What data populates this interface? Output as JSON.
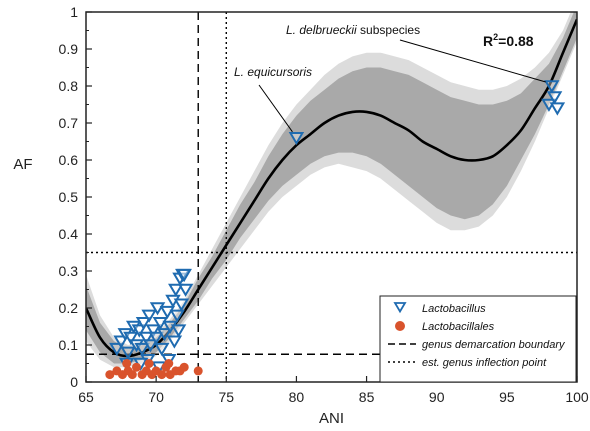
{
  "chart_data": {
    "type": "scatter",
    "xlabel": "ANI",
    "ylabel": "AF",
    "xlim": [
      65,
      100
    ],
    "ylim": [
      0,
      1
    ],
    "x_ticks": [
      65,
      70,
      75,
      80,
      85,
      90,
      95,
      100
    ],
    "y_ticks": [
      0,
      0.1,
      0.2,
      0.3,
      0.4,
      0.5,
      0.6,
      0.7,
      0.8,
      0.9,
      1
    ],
    "y_tick_labels": [
      "0",
      "0.1",
      "0.2",
      "0.3",
      "0.4",
      "0.5",
      "0.6",
      "0.7",
      "0.8",
      "0.9",
      "1"
    ],
    "grid": false,
    "fit": {
      "x": [
        65,
        66,
        67,
        68,
        69,
        70,
        71,
        72,
        73,
        74,
        75,
        76,
        77,
        78,
        79,
        80,
        81,
        82,
        83,
        84,
        85,
        86,
        87,
        88,
        89,
        90,
        91,
        92,
        93,
        94,
        95,
        96,
        97,
        98,
        99,
        100
      ],
      "y": [
        0.2,
        0.12,
        0.08,
        0.07,
        0.08,
        0.1,
        0.14,
        0.19,
        0.25,
        0.31,
        0.37,
        0.43,
        0.49,
        0.55,
        0.6,
        0.64,
        0.67,
        0.7,
        0.72,
        0.73,
        0.73,
        0.72,
        0.7,
        0.68,
        0.65,
        0.63,
        0.61,
        0.6,
        0.6,
        0.61,
        0.64,
        0.68,
        0.74,
        0.8,
        0.89,
        0.98
      ],
      "band_inner_low": [
        0.14,
        0.08,
        0.05,
        0.05,
        0.06,
        0.08,
        0.12,
        0.17,
        0.22,
        0.28,
        0.33,
        0.39,
        0.44,
        0.49,
        0.53,
        0.56,
        0.59,
        0.61,
        0.62,
        0.62,
        0.61,
        0.59,
        0.56,
        0.53,
        0.5,
        0.47,
        0.45,
        0.44,
        0.45,
        0.48,
        0.53,
        0.6,
        0.67,
        0.75,
        0.84,
        0.93
      ],
      "band_inner_high": [
        0.26,
        0.16,
        0.11,
        0.09,
        0.1,
        0.12,
        0.16,
        0.21,
        0.28,
        0.34,
        0.41,
        0.48,
        0.54,
        0.61,
        0.67,
        0.72,
        0.76,
        0.79,
        0.82,
        0.84,
        0.85,
        0.85,
        0.84,
        0.83,
        0.81,
        0.79,
        0.77,
        0.76,
        0.75,
        0.75,
        0.76,
        0.78,
        0.82,
        0.86,
        0.93,
        1.02
      ],
      "band_outer_low": [
        0.11,
        0.06,
        0.04,
        0.04,
        0.05,
        0.07,
        0.11,
        0.16,
        0.21,
        0.26,
        0.31,
        0.36,
        0.41,
        0.46,
        0.5,
        0.53,
        0.56,
        0.58,
        0.59,
        0.58,
        0.57,
        0.55,
        0.52,
        0.49,
        0.46,
        0.43,
        0.41,
        0.41,
        0.42,
        0.45,
        0.5,
        0.57,
        0.65,
        0.74,
        0.83,
        0.92
      ],
      "band_outer_high": [
        0.29,
        0.18,
        0.12,
        0.1,
        0.11,
        0.13,
        0.17,
        0.22,
        0.29,
        0.36,
        0.43,
        0.5,
        0.57,
        0.64,
        0.7,
        0.75,
        0.79,
        0.83,
        0.86,
        0.88,
        0.89,
        0.89,
        0.88,
        0.87,
        0.85,
        0.83,
        0.81,
        0.8,
        0.79,
        0.79,
        0.8,
        0.82,
        0.85,
        0.89,
        0.95,
        1.04
      ]
    },
    "series": [
      {
        "name": "Lactobacillus",
        "marker": "triangle-down-open",
        "color": "#1f6bb0",
        "points": [
          [
            67.2,
            0.09
          ],
          [
            67.5,
            0.11
          ],
          [
            67.8,
            0.13
          ],
          [
            68.0,
            0.08
          ],
          [
            68.2,
            0.12
          ],
          [
            68.4,
            0.15
          ],
          [
            68.6,
            0.1
          ],
          [
            68.8,
            0.14
          ],
          [
            69.0,
            0.09
          ],
          [
            69.1,
            0.16
          ],
          [
            69.3,
            0.12
          ],
          [
            69.5,
            0.18
          ],
          [
            69.6,
            0.1
          ],
          [
            69.8,
            0.14
          ],
          [
            70.0,
            0.12
          ],
          [
            70.1,
            0.2
          ],
          [
            70.3,
            0.16
          ],
          [
            70.4,
            0.09
          ],
          [
            70.6,
            0.13
          ],
          [
            70.8,
            0.19
          ],
          [
            70.9,
            0.06
          ],
          [
            71.0,
            0.15
          ],
          [
            71.2,
            0.22
          ],
          [
            71.3,
            0.11
          ],
          [
            71.4,
            0.25
          ],
          [
            71.5,
            0.18
          ],
          [
            71.7,
            0.28
          ],
          [
            71.8,
            0.21
          ],
          [
            71.9,
            0.29
          ],
          [
            72.0,
            0.29
          ],
          [
            72.1,
            0.25
          ],
          [
            71.6,
            0.14
          ],
          [
            69.4,
            0.06
          ],
          [
            68.9,
            0.05
          ],
          [
            67.9,
            0.05
          ],
          [
            70.2,
            0.04
          ],
          [
            80.0,
            0.66
          ],
          [
            98.0,
            0.75
          ],
          [
            98.2,
            0.8
          ],
          [
            98.4,
            0.77
          ],
          [
            98.6,
            0.74
          ]
        ]
      },
      {
        "name": "Lactobacillales",
        "marker": "circle-filled",
        "color": "#d9532c",
        "points": [
          [
            66.7,
            0.02
          ],
          [
            67.2,
            0.03
          ],
          [
            67.6,
            0.02
          ],
          [
            68.0,
            0.03
          ],
          [
            68.3,
            0.02
          ],
          [
            68.6,
            0.04
          ],
          [
            69.0,
            0.02
          ],
          [
            69.3,
            0.03
          ],
          [
            69.7,
            0.02
          ],
          [
            70.0,
            0.03
          ],
          [
            70.4,
            0.02
          ],
          [
            70.7,
            0.04
          ],
          [
            71.0,
            0.02
          ],
          [
            71.4,
            0.03
          ],
          [
            71.7,
            0.03
          ],
          [
            72.0,
            0.04
          ],
          [
            73.0,
            0.03
          ],
          [
            67.9,
            0.05
          ],
          [
            69.5,
            0.05
          ],
          [
            70.9,
            0.05
          ]
        ]
      }
    ],
    "reference_lines": [
      {
        "name": "genus demarcation boundary",
        "style": "dashed",
        "x": 73,
        "y": 0.075
      },
      {
        "name": "est. genus inflection point",
        "style": "dotted",
        "x": 75,
        "y": 0.35
      }
    ],
    "annotations": {
      "equicursoris": {
        "text": "L. equicursoris",
        "x": 80,
        "y": 0.66
      },
      "delbrueckii_italic": "L. delbrueckii",
      "delbrueckii_rest": " subspecies",
      "delbrueckii_x": 98.2,
      "delbrueckii_y": 0.8,
      "r2_prefix": "R",
      "r2_sup": "2",
      "r2_value": "=0.88"
    },
    "legend": {
      "placement": "bottom-right",
      "items": [
        {
          "label": "Lactobacillus",
          "marker": "triangle-down-open"
        },
        {
          "label": "Lactobacillales",
          "marker": "circle-filled"
        },
        {
          "label": "genus demarcation boundary",
          "marker": "dashed-line"
        },
        {
          "label": "est. genus inflection point",
          "marker": "dotted-line"
        }
      ]
    },
    "colors": {
      "band_outer": "#dcdcdc",
      "band_inner": "#a9a9a9",
      "fit_line": "#000000",
      "lactobacillus": "#1f6bb0",
      "lactobacillales": "#d9532c"
    }
  }
}
